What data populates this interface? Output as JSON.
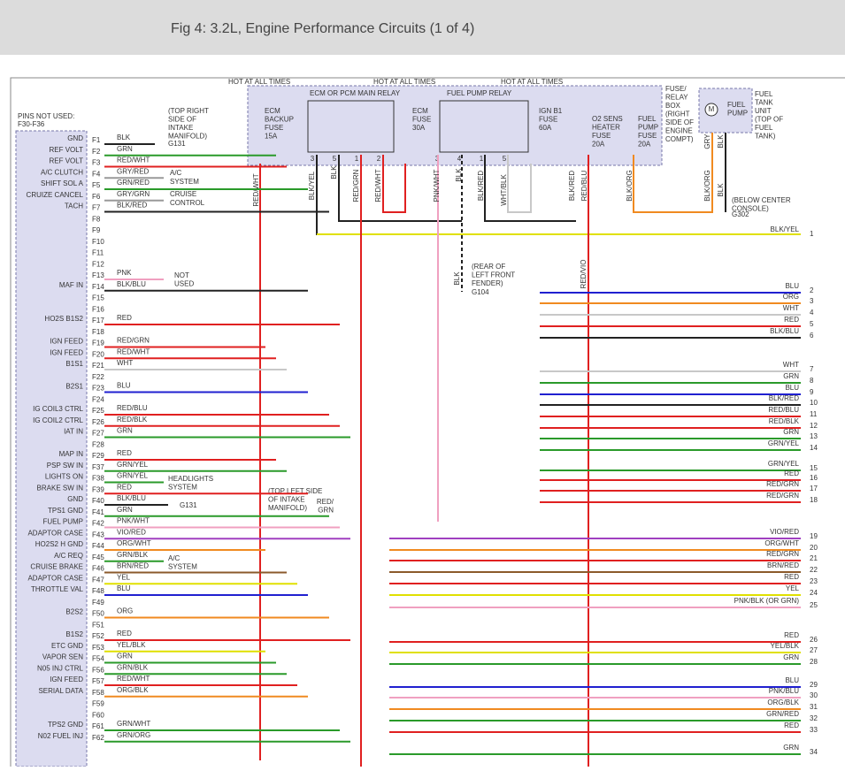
{
  "header": {
    "title": "Fig 4: 3.2L, Engine Performance Circuits (1 of 4)"
  },
  "pins_not_used": [
    "PINS NOT USED:",
    "F30-F36"
  ],
  "pins": [
    {
      "pin": "F1",
      "label": "GND",
      "wire": "BLK"
    },
    {
      "pin": "F2",
      "label": "REF VOLT",
      "wire": "GRN"
    },
    {
      "pin": "F3",
      "label": "REF VOLT",
      "wire": "RED/WHT"
    },
    {
      "pin": "F4",
      "label": "A/C CLUTCH",
      "wire": "GRY/RED"
    },
    {
      "pin": "F5",
      "label": "SHIFT SOL A",
      "wire": "GRN/RED"
    },
    {
      "pin": "F6",
      "label": "CRUIZE CANCEL",
      "wire": "GRY/GRN"
    },
    {
      "pin": "F7",
      "label": "TACH",
      "wire": "BLK/RED"
    },
    {
      "pin": "F8"
    },
    {
      "pin": "F9"
    },
    {
      "pin": "F10"
    },
    {
      "pin": "F11"
    },
    {
      "pin": "F12"
    },
    {
      "pin": "F13",
      "wire": "PNK"
    },
    {
      "pin": "F14",
      "label": "MAF IN",
      "wire": "BLK/BLU"
    },
    {
      "pin": "F15"
    },
    {
      "pin": "F16"
    },
    {
      "pin": "F17",
      "label": "HO2S B1S2",
      "wire": "RED"
    },
    {
      "pin": "F18"
    },
    {
      "pin": "F19",
      "label": "IGN FEED",
      "wire": "RED/GRN"
    },
    {
      "pin": "F20",
      "label": "IGN FEED",
      "wire": "RED/WHT"
    },
    {
      "pin": "F21",
      "label": "B1S1",
      "wire": "WHT"
    },
    {
      "pin": "F22"
    },
    {
      "pin": "F23",
      "label": "B2S1",
      "wire": "BLU"
    },
    {
      "pin": "F24"
    },
    {
      "pin": "F25",
      "label": "IG COIL3 CTRL",
      "wire": "RED/BLU"
    },
    {
      "pin": "F26",
      "label": "IG COIL2 CTRL",
      "wire": "RED/BLK"
    },
    {
      "pin": "F27",
      "label": "IAT IN",
      "wire": "GRN"
    },
    {
      "pin": "F28"
    },
    {
      "pin": "F29",
      "label": "MAP IN",
      "wire": "RED"
    },
    {
      "pin": "F37",
      "label": "PSP SW IN",
      "wire": "GRN/YEL"
    },
    {
      "pin": "F38",
      "label": "LIGHTS ON",
      "wire": "GRN/YEL"
    },
    {
      "pin": "F39",
      "label": "BRAKE SW IN",
      "wire": "RED"
    },
    {
      "pin": "F40",
      "label": "GND",
      "wire": "BLK/BLU"
    },
    {
      "pin": "F41",
      "label": "TPS1 GND",
      "wire": "GRN"
    },
    {
      "pin": "F42",
      "label": "FUEL PUMP",
      "wire": "PNK/WHT"
    },
    {
      "pin": "F43",
      "label": "ADAPTOR CASE",
      "wire": "VIO/RED"
    },
    {
      "pin": "F44",
      "label": "HO2S2 H GND",
      "wire": "ORG/WHT"
    },
    {
      "pin": "F45",
      "label": "A/C REQ",
      "wire": "GRN/BLK"
    },
    {
      "pin": "F46",
      "label": "CRUISE BRAKE",
      "wire": "BRN/RED"
    },
    {
      "pin": "F47",
      "label": "ADAPTOR CASE",
      "wire": "YEL"
    },
    {
      "pin": "F48",
      "label": "THROTTLE VAL",
      "wire": "BLU"
    },
    {
      "pin": "F49"
    },
    {
      "pin": "F50",
      "label": "B2S2",
      "wire": "ORG"
    },
    {
      "pin": "F51"
    },
    {
      "pin": "F52",
      "label": "B1S2",
      "wire": "RED"
    },
    {
      "pin": "F53",
      "label": "ETC GND",
      "wire": "YEL/BLK"
    },
    {
      "pin": "F54",
      "label": "VAPOR SEN",
      "wire": "GRN"
    },
    {
      "pin": "F56",
      "label": "N05 INJ CTRL",
      "wire": "GRN/BLK"
    },
    {
      "pin": "F57",
      "label": "IGN FEED",
      "wire": "RED/WHT"
    },
    {
      "pin": "F58",
      "label": "SERIAL DATA",
      "wire": "ORG/BLK"
    },
    {
      "pin": "F59"
    },
    {
      "pin": "F60"
    },
    {
      "pin": "F61",
      "label": "TPS2 GND",
      "wire": "GRN/WHT"
    },
    {
      "pin": "F62",
      "label": "N02 FUEL INJ",
      "wire": "GRN/ORG"
    }
  ],
  "right_wires": [
    {
      "color": "BLK/YEL",
      "number": 1
    },
    {
      "color": "BLU",
      "number": 2
    },
    {
      "color": "ORG",
      "number": 3
    },
    {
      "color": "WHT",
      "number": 4
    },
    {
      "color": "RED",
      "number": 5
    },
    {
      "color": "BLK/BLU",
      "number": 6
    },
    {
      "color": "WHT",
      "number": 7
    },
    {
      "color": "GRN",
      "number": 8
    },
    {
      "color": "BLU",
      "number": 9
    },
    {
      "color": "BLK/RED",
      "number": 10
    },
    {
      "color": "RED/BLU",
      "number": 11
    },
    {
      "color": "RED/BLK",
      "number": 12
    },
    {
      "color": "GRN",
      "number": 13
    },
    {
      "color": "GRN/YEL",
      "number": 14
    },
    {
      "color": "GRN/YEL",
      "number": 15
    },
    {
      "color": "RED",
      "number": 16
    },
    {
      "color": "RED/GRN",
      "number": 17
    },
    {
      "color": "RED/GRN",
      "number": 18
    },
    {
      "color": "VIO/RED",
      "number": 19
    },
    {
      "color": "ORG/WHT",
      "number": 20
    },
    {
      "color": "RED/GRN",
      "number": 21
    },
    {
      "color": "BRN/RED",
      "number": 22
    },
    {
      "color": "RED",
      "number": 23
    },
    {
      "color": "YEL",
      "number": 24
    },
    {
      "color": "PNK/BLK (OR GRN)",
      "number": 25
    },
    {
      "color": "RED",
      "number": 26
    },
    {
      "color": "YEL/BLK",
      "number": 27
    },
    {
      "color": "GRN",
      "number": 28
    },
    {
      "color": "BLU",
      "number": 29
    },
    {
      "color": "PNK/BLU",
      "number": 30
    },
    {
      "color": "ORG/BLK",
      "number": 31
    },
    {
      "color": "GRN/RED",
      "number": 32
    },
    {
      "color": "RED",
      "number": 33
    },
    {
      "color": "GRN",
      "number": 34
    }
  ],
  "vertical_labels": [
    "RED/WHT",
    "BLK/YEL",
    "BLK",
    "RED/GRN",
    "RED/WHT",
    "PNK/WHT",
    "BLK",
    "BLK/RED",
    "WHT/BLK",
    "BLK/RED",
    "RED/BLU",
    "BLK/ORG",
    "GRY",
    "BLK",
    "BLK/ORG",
    "BLK",
    "BLK",
    "RED/VIO"
  ],
  "notes": {
    "hot": [
      "HOT AT ALL TIMES",
      "HOT AT ALL TIMES",
      "HOT AT ALL TIMES"
    ],
    "ecm_relay": "ECM OR PCM MAIN RELAY",
    "fp_relay": "FUEL PUMP RELAY",
    "ecm_backup_fuse": [
      "ECM",
      "BACKUP",
      "FUSE",
      "15A"
    ],
    "ecm_fuse": [
      "ECM",
      "FUSE",
      "30A"
    ],
    "ign_fuse": [
      "IGN B1",
      "FUSE",
      "60A"
    ],
    "o2_fuse": [
      "O2 SENS",
      "HEATER",
      "FUSE",
      "20A"
    ],
    "fp_fuse": [
      "FUEL",
      "PUMP",
      "FUSE",
      "20A"
    ],
    "relay_box": [
      "FUSE/",
      "RELAY",
      "BOX",
      "(RIGHT",
      "SIDE OF",
      "ENGINE",
      "COMPT)"
    ],
    "motor": "M",
    "fuel_pump": [
      "FUEL",
      "PUMP"
    ],
    "fuel_tank": [
      "FUEL",
      "TANK",
      "UNIT",
      "(TOP OF",
      "FUEL",
      "TANK)"
    ],
    "relay_pins_1": [
      "3",
      "5",
      "1",
      "2"
    ],
    "relay_pins_2": [
      "3",
      "4",
      "1",
      "5"
    ],
    "intake_right": [
      "(TOP RIGHT",
      "SIDE OF",
      "INTAKE",
      "MANIFOLD)"
    ],
    "g131_top": "G131",
    "g131_bottom": "G131",
    "ac1": [
      "A/C",
      "SYSTEM"
    ],
    "cruise": [
      "CRUISE",
      "CONTROL"
    ],
    "not_used": [
      "NOT",
      "USED"
    ],
    "headlights": [
      "HEADLIGHTS",
      "SYSTEM"
    ],
    "ac2": [
      "A/C",
      "SYSTEM"
    ],
    "intake_left": [
      "(TOP LEFT SIDE",
      "OF INTAKE",
      "MANIFOLD)"
    ],
    "red_grn": [
      "RED/",
      "GRN"
    ],
    "fender": [
      "(REAR OF",
      "LEFT FRONT",
      "FENDER)"
    ],
    "g104": "G104",
    "console": [
      "(BELOW CENTER",
      "CONSOLE)"
    ],
    "g302": "G302"
  }
}
